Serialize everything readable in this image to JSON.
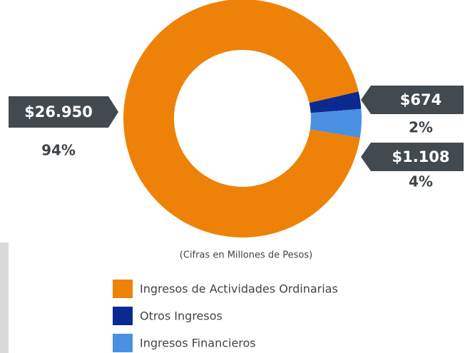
{
  "chart_data": {
    "type": "donut",
    "subtitle": "(Cifras en Millones de Pesos)",
    "series": [
      {
        "name": "Ingresos de Actividades Ordinarias",
        "color": "#ee8208"
      },
      {
        "name": "Otros Ingresos",
        "color": "#0b2a8f"
      },
      {
        "name": "Ingresos Financieros",
        "color": "#4a90e2"
      }
    ],
    "values": [
      26950,
      674,
      1108
    ],
    "value_labels": [
      "$26.950",
      "$674",
      "$1.108"
    ],
    "percentages": [
      94,
      2,
      4
    ],
    "percentage_labels": [
      "94%",
      "2%",
      "4%"
    ]
  }
}
